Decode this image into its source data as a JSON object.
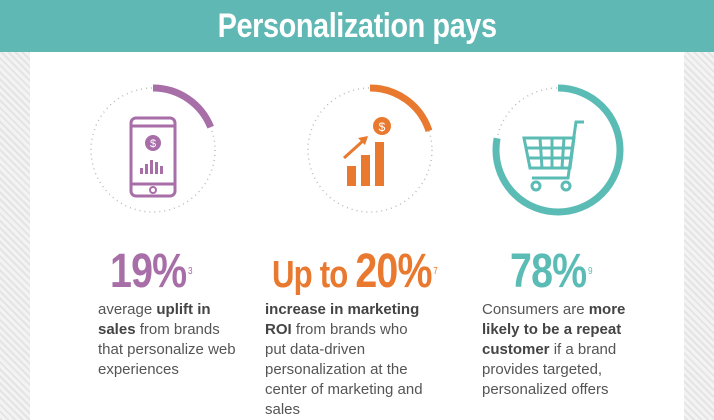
{
  "title": "Personalization pays",
  "colors": {
    "header": "#5fb8b3",
    "purple": "#a86ea8",
    "orange": "#e8792f",
    "teal": "#5bbcb5"
  },
  "stats": [
    {
      "icon": "smartphone-dollar-icon",
      "progress_percent": 19,
      "prefix": "",
      "value": "19%",
      "footnote": "3",
      "desc": [
        {
          "t": "average ",
          "b": false
        },
        {
          "t": "uplift in sales",
          "b": true
        },
        {
          "t": " from brands that personalize web experiences",
          "b": false
        }
      ]
    },
    {
      "icon": "growth-chart-dollar-icon",
      "progress_percent": 20,
      "prefix": "Up to ",
      "value": "20%",
      "footnote": "7",
      "desc": [
        {
          "t": "increase in marketing ROI",
          "b": true
        },
        {
          "t": " from brands who put data-driven personalization at the center of marketing and sales",
          "b": false
        }
      ]
    },
    {
      "icon": "shopping-cart-icon",
      "progress_percent": 78,
      "prefix": "",
      "value": "78%",
      "footnote": "9",
      "desc": [
        {
          "t": "Consumers are ",
          "b": false
        },
        {
          "t": "more likely to be a repeat customer",
          "b": true
        },
        {
          "t": " if a brand provides targeted, personalized offers",
          "b": false
        }
      ]
    }
  ]
}
